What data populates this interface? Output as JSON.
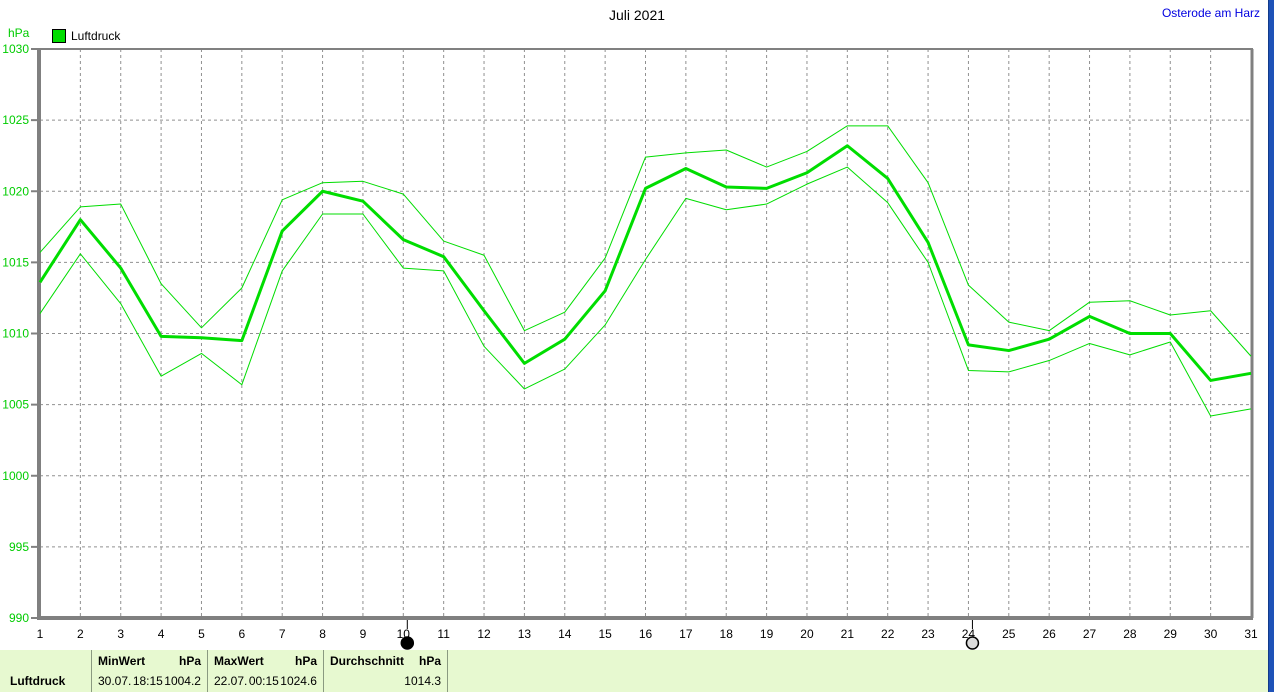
{
  "header": {
    "title": "Juli 2021",
    "station": "Osterode am Harz"
  },
  "legend": {
    "label": "Luftdruck"
  },
  "y_axis": {
    "unit": "hPa"
  },
  "chart_data": {
    "type": "line",
    "title": "Juli 2021",
    "station": "Osterode am Harz",
    "ylabel": "hPa",
    "legend_label": "Luftdruck",
    "x": [
      1,
      2,
      3,
      4,
      5,
      6,
      7,
      8,
      9,
      10,
      11,
      12,
      13,
      14,
      15,
      16,
      17,
      18,
      19,
      20,
      21,
      22,
      23,
      24,
      25,
      26,
      27,
      28,
      29,
      30,
      31
    ],
    "series": [
      {
        "name": "max",
        "emphasis": false,
        "values": [
          1015.7,
          1018.9,
          1019.1,
          1013.5,
          1010.4,
          1013.2,
          1019.4,
          1020.6,
          1020.7,
          1019.8,
          1016.5,
          1015.5,
          1010.2,
          1011.5,
          1015.3,
          1022.4,
          1022.7,
          1022.9,
          1021.7,
          1022.8,
          1024.6,
          1024.6,
          1020.6,
          1013.4,
          1010.8,
          1010.2,
          1012.2,
          1012.3,
          1011.3,
          1011.6,
          1008.4
        ]
      },
      {
        "name": "min",
        "emphasis": false,
        "values": [
          1011.4,
          1015.6,
          1012.1,
          1007.0,
          1008.6,
          1006.4,
          1014.4,
          1018.4,
          1018.4,
          1014.6,
          1014.4,
          1009.1,
          1006.1,
          1007.5,
          1010.6,
          1015.2,
          1019.5,
          1018.7,
          1019.1,
          1020.5,
          1021.7,
          1019.2,
          1015.0,
          1007.4,
          1007.3,
          1008.1,
          1009.3,
          1008.5,
          1009.4,
          1004.2,
          1004.7
        ]
      },
      {
        "name": "avg",
        "emphasis": true,
        "values": [
          1013.6,
          1018.0,
          1014.6,
          1009.8,
          1009.7,
          1009.5,
          1017.2,
          1020.0,
          1019.3,
          1016.6,
          1015.4,
          1011.6,
          1007.9,
          1009.6,
          1013.0,
          1020.2,
          1021.6,
          1020.3,
          1020.2,
          1021.3,
          1023.2,
          1020.9,
          1016.4,
          1009.2,
          1008.8,
          1009.6,
          1011.2,
          1010.0,
          1010.0,
          1006.7,
          1007.2
        ]
      }
    ],
    "ylim": [
      990,
      1030
    ],
    "ytick_step": 5,
    "grid": true,
    "legend_position": "top-left",
    "markers": [
      {
        "day": 10,
        "phase": "new-moon"
      },
      {
        "day": 24,
        "phase": "full-moon"
      }
    ]
  },
  "status_bar": {
    "row_label": "Luftdruck",
    "min": {
      "label": "MinWert",
      "unit": "hPa",
      "date": "30.07.",
      "time": "18:15",
      "value": "1004.2"
    },
    "max": {
      "label": "MaxWert",
      "unit": "hPa",
      "date": "22.07.",
      "time": "00:15",
      "value": "1024.6"
    },
    "avg": {
      "label": "Durchschnitt",
      "unit": "hPa",
      "value": "1014.3"
    }
  },
  "colors": {
    "line-green": "#00dd00",
    "axis-green": "#00cc00",
    "grid-gray": "#909090",
    "axis-gray": "#808080",
    "status-bg": "#e7f9d0",
    "edge-blue": "#1e52b8",
    "station-blue": "#0000e0"
  }
}
